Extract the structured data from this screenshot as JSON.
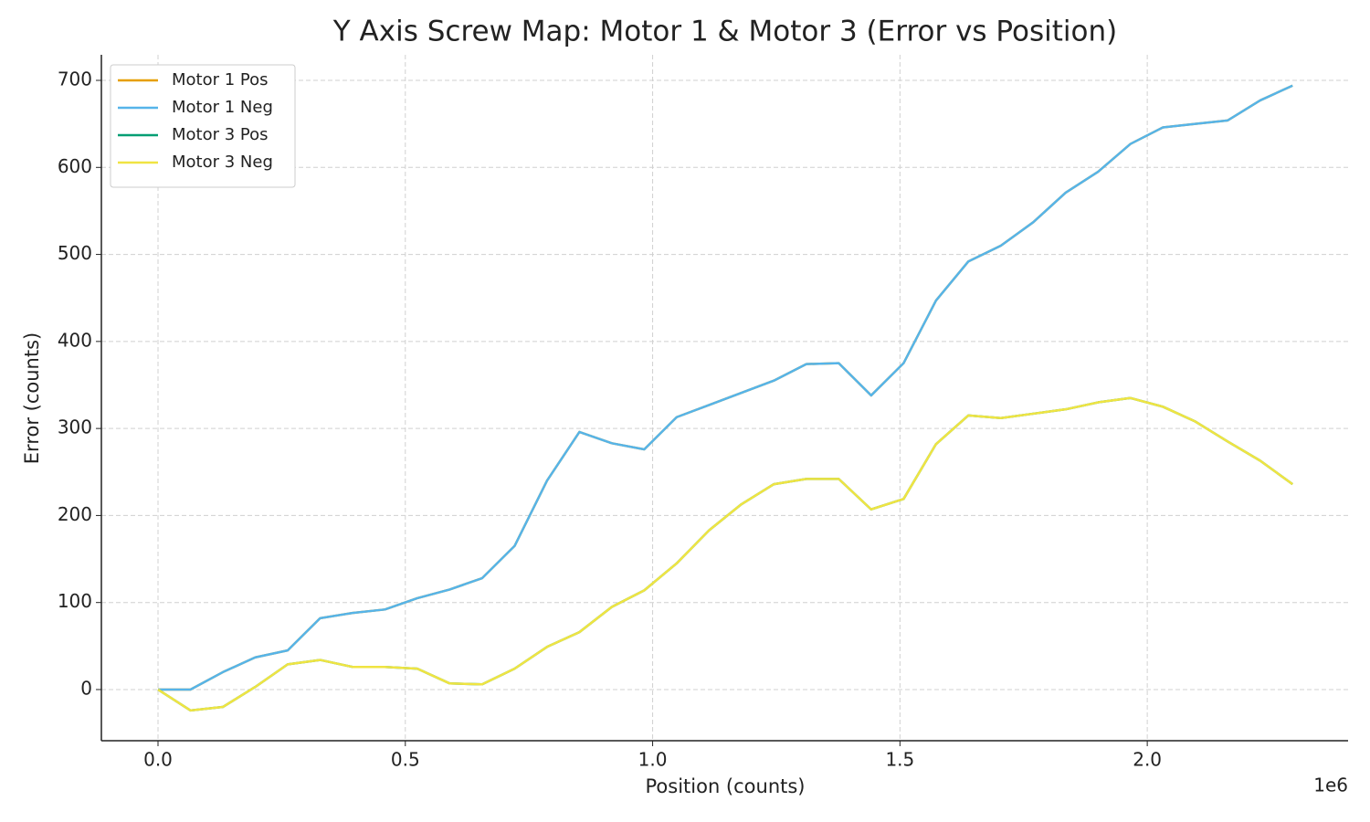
{
  "chart_data": {
    "type": "line",
    "title": "Y Axis Screw Map: Motor 1 & Motor 3 (Error vs Position)",
    "x_label": "Position (counts)",
    "y_label": "Error (counts)",
    "x_offset_label": "1e6",
    "x": [
      0,
      65536,
      131072,
      196608,
      262144,
      327680,
      393216,
      458752,
      524288,
      589824,
      655360,
      720896,
      786432,
      851968,
      917504,
      983040,
      1048576,
      1114112,
      1179648,
      1245184,
      1310720,
      1376256,
      1441792,
      1507328,
      1572864,
      1638400,
      1703936,
      1769472,
      1835008,
      1900544,
      1966080,
      2031616,
      2097152,
      2162688,
      2228224,
      2293760
    ],
    "series": [
      {
        "name": "Motor 1 Pos",
        "color": "#E69F00",
        "values": [
          0,
          0,
          20,
          37,
          45,
          82,
          88,
          92,
          105,
          115,
          128,
          165,
          240,
          296,
          283,
          276,
          313,
          327,
          341,
          355,
          374,
          375,
          338,
          375,
          447,
          492,
          510,
          537,
          571,
          595,
          627,
          646,
          650,
          654,
          677,
          694
        ]
      },
      {
        "name": "Motor 1 Neg",
        "color": "#56B4E9",
        "values": [
          0,
          0,
          20,
          37,
          45,
          82,
          88,
          92,
          105,
          115,
          128,
          165,
          240,
          296,
          283,
          276,
          313,
          327,
          341,
          355,
          374,
          375,
          338,
          375,
          447,
          492,
          510,
          537,
          571,
          595,
          627,
          646,
          650,
          654,
          677,
          694
        ]
      },
      {
        "name": "Motor 3 Pos",
        "color": "#009E73",
        "values": [
          0,
          -24,
          -20,
          3,
          29,
          34,
          26,
          26,
          24,
          7,
          6,
          24,
          49,
          66,
          95,
          114,
          145,
          183,
          213,
          236,
          242,
          242,
          207,
          219,
          282,
          315,
          312,
          317,
          322,
          330,
          335,
          325,
          308,
          285,
          263,
          236
        ]
      },
      {
        "name": "Motor 3 Neg",
        "color": "#F0E442",
        "values": [
          0,
          -24,
          -20,
          3,
          29,
          34,
          26,
          26,
          24,
          7,
          6,
          24,
          49,
          66,
          95,
          114,
          145,
          183,
          213,
          236,
          242,
          242,
          207,
          219,
          282,
          315,
          312,
          317,
          322,
          330,
          335,
          325,
          308,
          285,
          263,
          236
        ]
      }
    ],
    "xlim": [
      -114500,
      2406000
    ],
    "ylim": [
      -58.8,
      729.4
    ],
    "xticks": [
      {
        "value": 0,
        "label": "0.0"
      },
      {
        "value": 500000,
        "label": "0.5"
      },
      {
        "value": 1000000,
        "label": "1.0"
      },
      {
        "value": 1500000,
        "label": "1.5"
      },
      {
        "value": 2000000,
        "label": "2.0"
      }
    ],
    "yticks": [
      0,
      100,
      200,
      300,
      400,
      500,
      600,
      700
    ],
    "grid": true,
    "legend": "upper left"
  }
}
